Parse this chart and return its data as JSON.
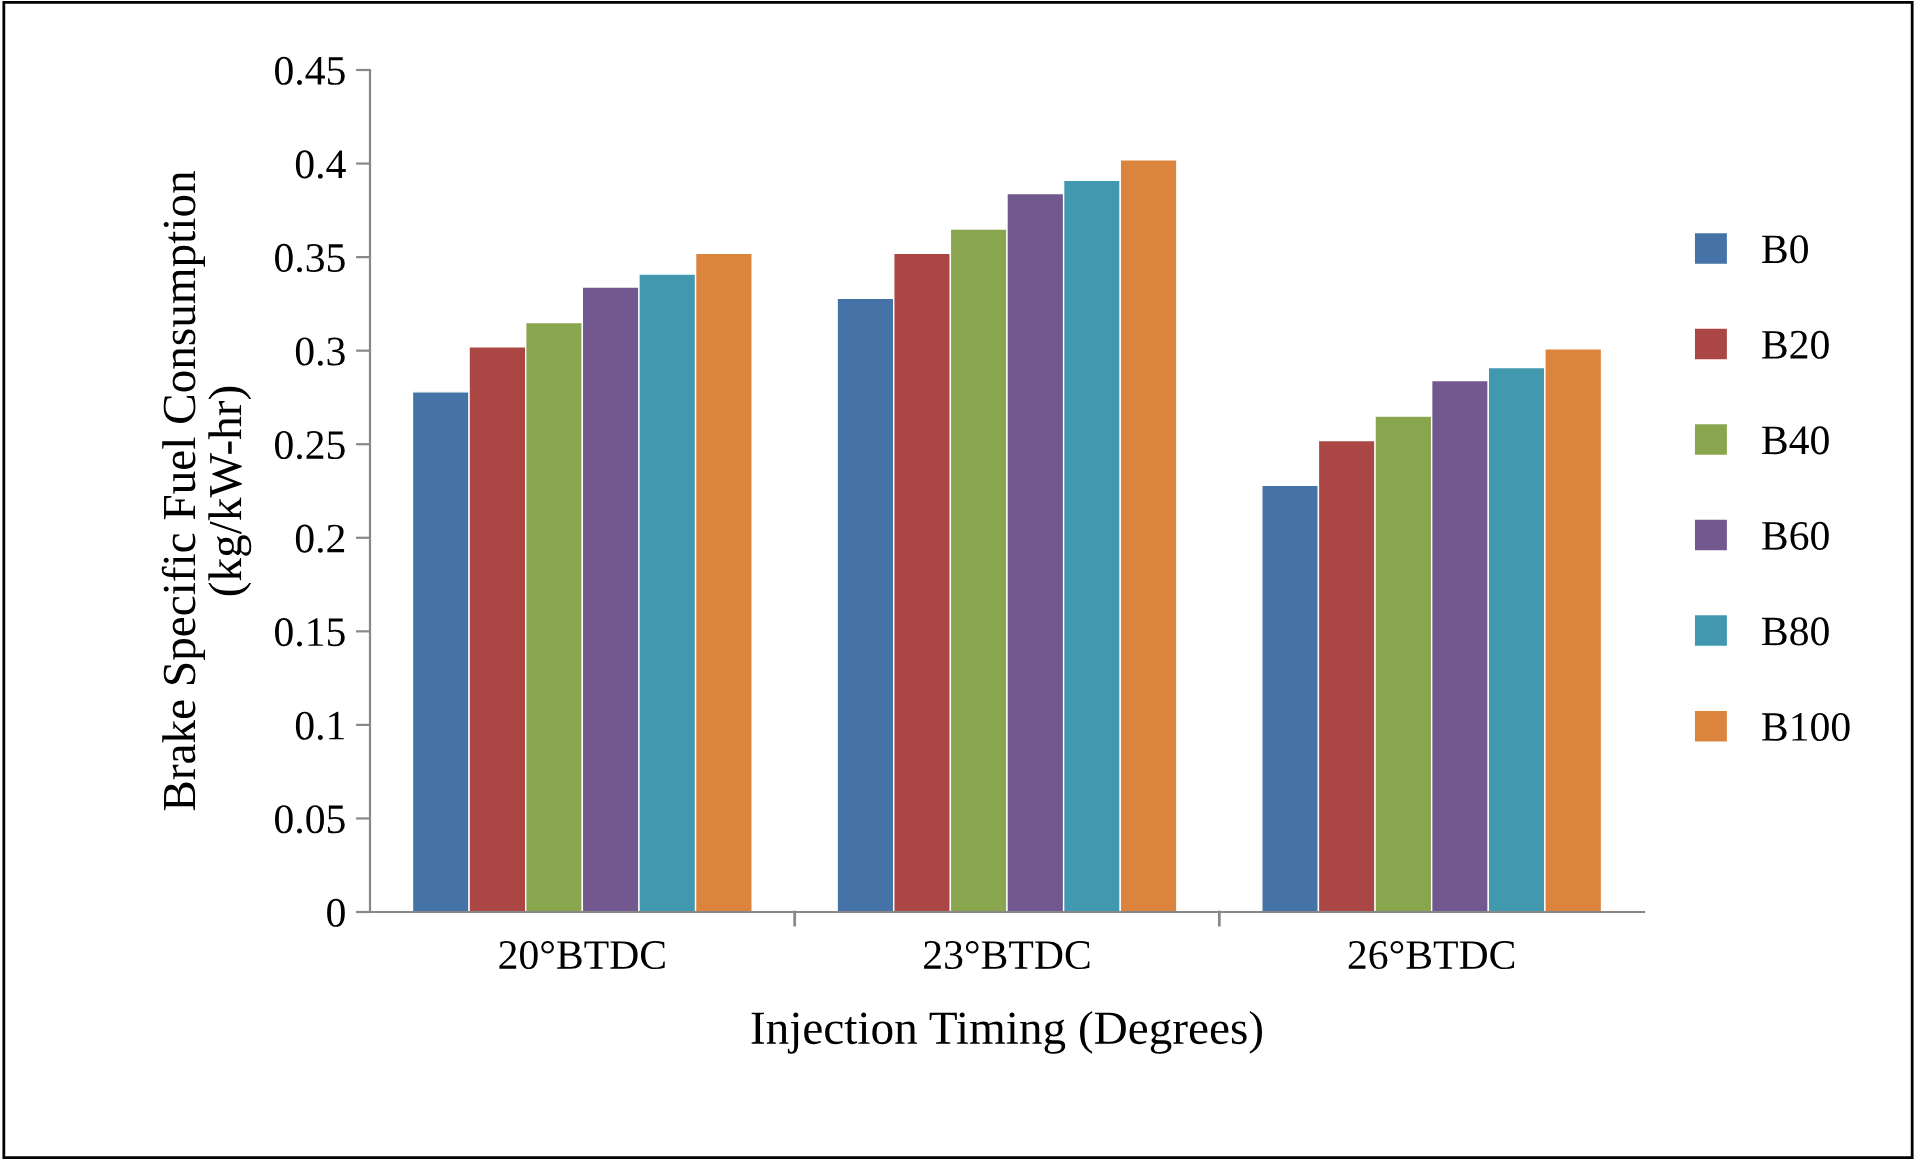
{
  "chart_data": {
    "type": "bar",
    "xlabel": "Injection Timing (Degrees)",
    "ylabel": "Brake Specific Fuel Consumption\n(kg/kW-hr)",
    "categories": [
      "20°BTDC",
      "23°BTDC",
      "26°BTDC"
    ],
    "series": [
      {
        "name": "B0",
        "color": "#4572a7",
        "values": [
          0.278,
          0.328,
          0.228
        ]
      },
      {
        "name": "B20",
        "color": "#aa4643",
        "values": [
          0.302,
          0.352,
          0.252
        ]
      },
      {
        "name": "B40",
        "color": "#89a54e",
        "values": [
          0.315,
          0.365,
          0.265
        ]
      },
      {
        "name": "B60",
        "color": "#71588f",
        "values": [
          0.334,
          0.384,
          0.284
        ]
      },
      {
        "name": "B80",
        "color": "#4198af",
        "values": [
          0.341,
          0.391,
          0.291
        ]
      },
      {
        "name": "B100",
        "color": "#db843d",
        "values": [
          0.352,
          0.402,
          0.301
        ]
      }
    ],
    "ylim": [
      0,
      0.45
    ],
    "yticks": [
      0,
      0.05,
      0.1,
      0.15,
      0.2,
      0.25,
      0.3,
      0.35,
      0.4,
      0.45
    ],
    "grid": false,
    "legend": "right"
  }
}
